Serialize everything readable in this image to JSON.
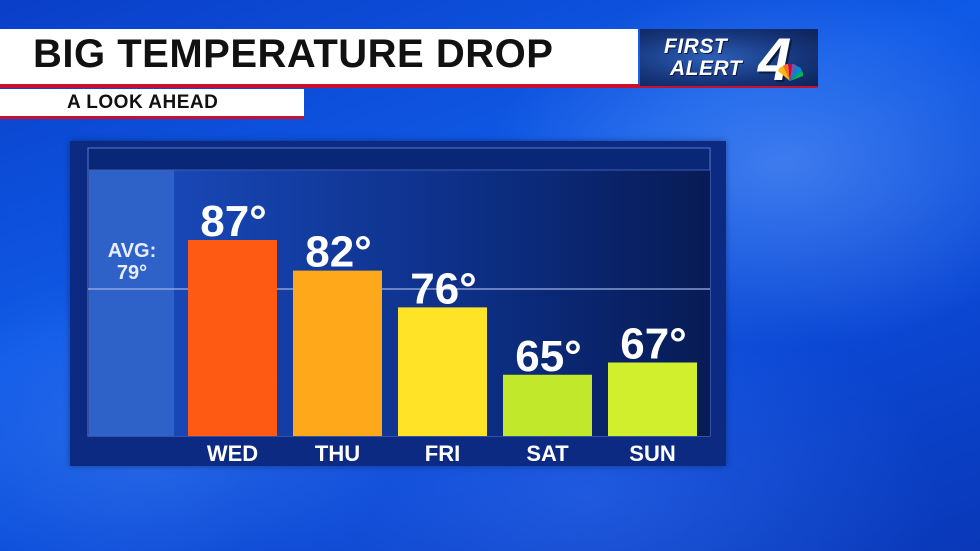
{
  "header": {
    "title": "BIG TEMPERATURE DROP",
    "subtitle": "A LOOK AHEAD"
  },
  "logo": {
    "line1": "FIRST",
    "line2": "ALERT",
    "number": "4",
    "icon": "nbc-peacock-icon"
  },
  "colors": {
    "banner_accent": "#c8102e",
    "panel": "#0c2a82"
  },
  "chart_data": {
    "type": "bar",
    "categories": [
      "WED",
      "THU",
      "FRI",
      "SAT",
      "SUN"
    ],
    "values": [
      87,
      82,
      76,
      65,
      67
    ],
    "value_labels": [
      "87°",
      "82°",
      "76°",
      "65°",
      "67°"
    ],
    "bar_colors": [
      "#ff5a14",
      "#ffa91a",
      "#ffe326",
      "#c2e82c",
      "#d2ef2e"
    ],
    "reference_line": {
      "value": 79,
      "label_line1": "AVG:",
      "label_line2": "79°"
    },
    "ylim": [
      55,
      95
    ],
    "grid": false,
    "legend": "none",
    "title": "",
    "xlabel": "",
    "ylabel": ""
  }
}
